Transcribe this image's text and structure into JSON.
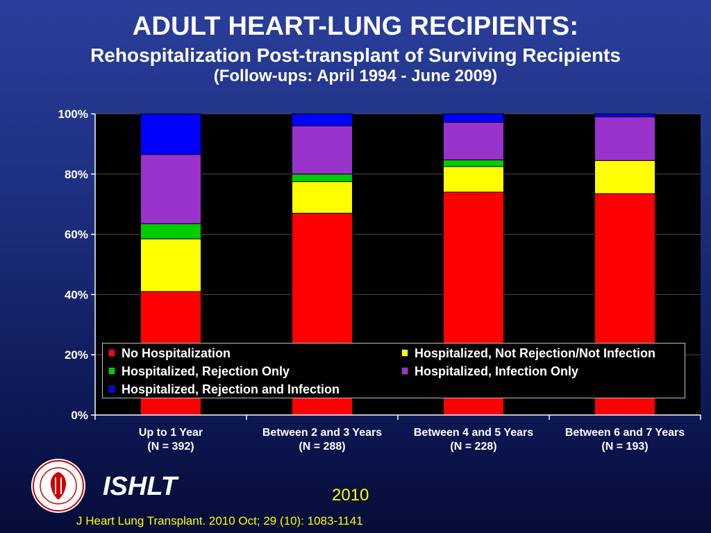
{
  "header": {
    "title": "ADULT HEART-LUNG RECIPIENTS:",
    "subtitle": "Rehospitalization Post-transplant of Surviving Recipients",
    "subtitle2": "(Follow-ups: April 1994 - June 2009)"
  },
  "chart_data": {
    "type": "bar",
    "stacked": true,
    "percent": true,
    "categories": [
      "Up to 1 Year",
      "Between 2 and 3 Years",
      "Between 4 and 5 Years",
      "Between 6 and 7 Years"
    ],
    "category_counts": [
      "(N = 392)",
      "(N = 288)",
      "(N = 228)",
      "(N = 193)"
    ],
    "ylim": [
      0,
      100
    ],
    "yticks": [
      "0%",
      "20%",
      "40%",
      "60%",
      "80%",
      "100%"
    ],
    "legend_position": "bottom-inside",
    "series": [
      {
        "name": "No Hospitalization",
        "color": "#ff0000",
        "values": [
          41,
          67,
          74,
          73.5
        ]
      },
      {
        "name": "Hospitalized, Not Rejection/Not Infection",
        "color": "#ffff00",
        "values": [
          17.5,
          10.5,
          8.5,
          11
        ]
      },
      {
        "name": "Hospitalized, Rejection Only",
        "color": "#00cc00",
        "values": [
          5,
          2.5,
          2.2,
          0
        ]
      },
      {
        "name": "Hospitalized, Infection Only",
        "color": "#9933cc",
        "values": [
          23,
          16,
          12.5,
          14.5
        ]
      },
      {
        "name": "Hospitalized, Rejection and Infection",
        "color": "#0000ff",
        "values": [
          13.5,
          4,
          2.8,
          1
        ]
      }
    ]
  },
  "footer": {
    "logo_name": "ishlt-seal",
    "org": "ISHLT",
    "year": "2010",
    "citation": "J Heart Lung Transplant. 2010 Oct; 29 (10): 1083-1141"
  }
}
